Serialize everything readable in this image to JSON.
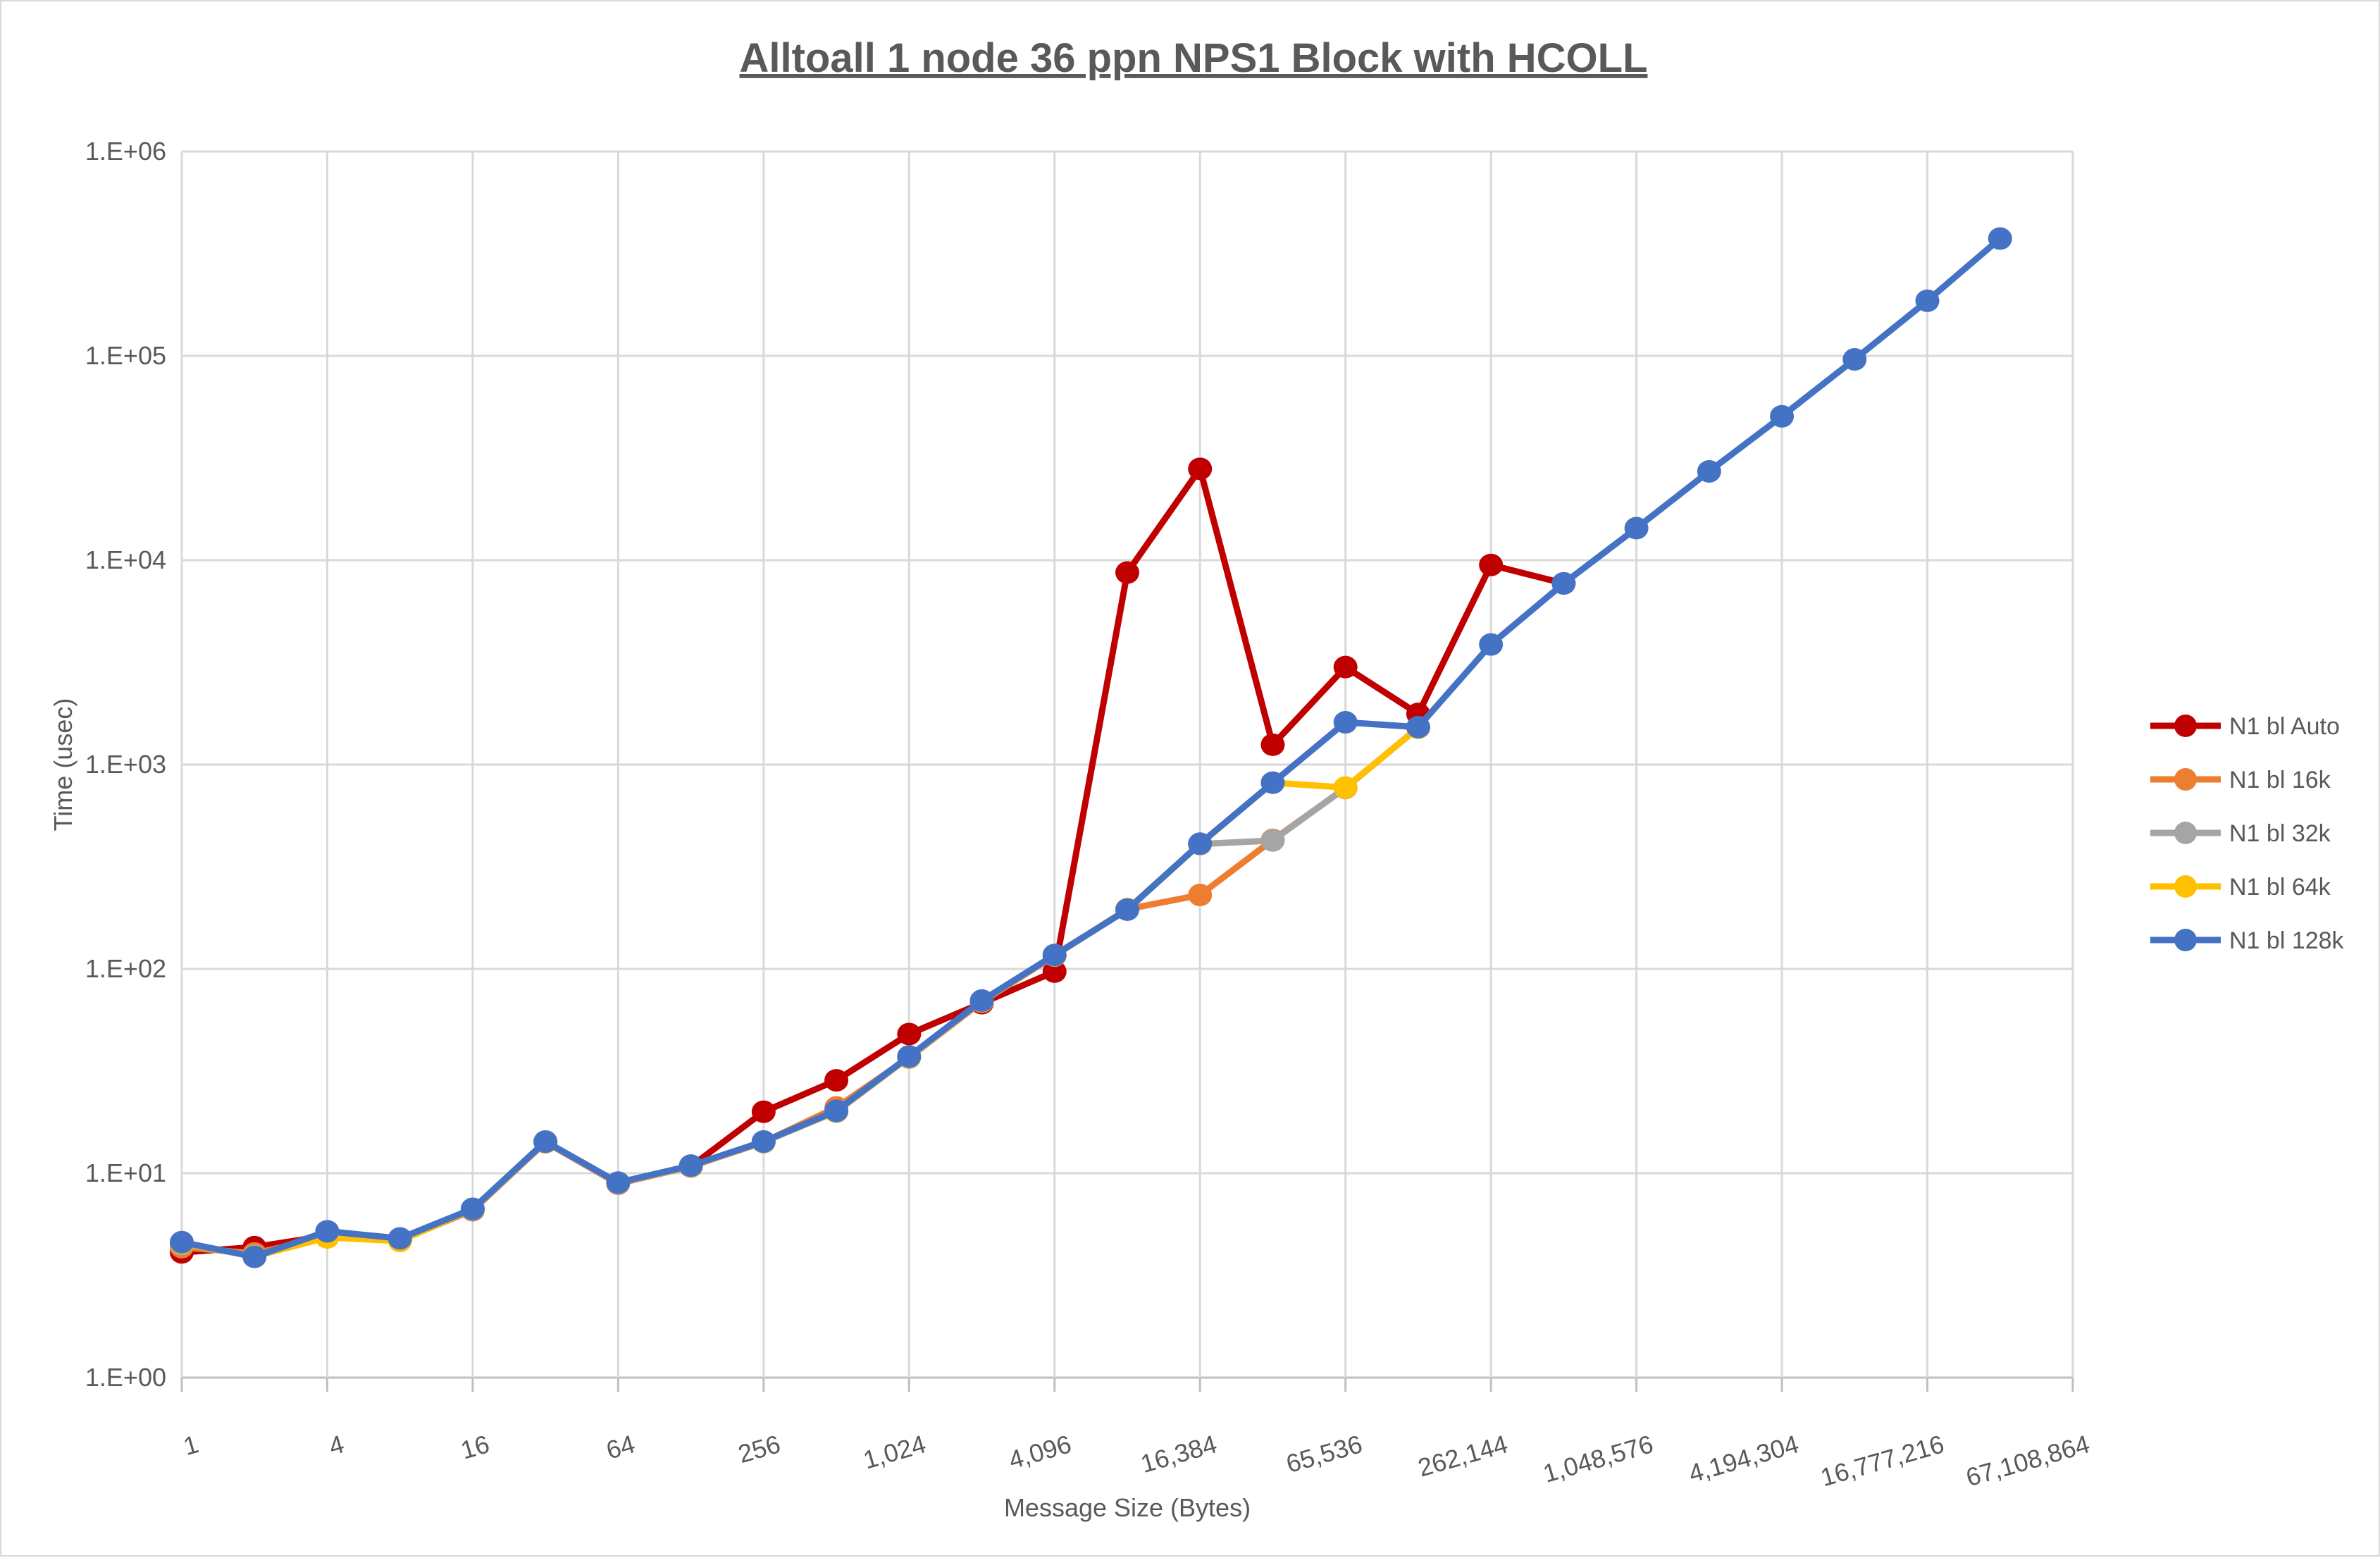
{
  "title": "Alltoall 1 node 36 ppn NPS1 Block with HCOLL",
  "colors": {
    "title_text": "#595959",
    "axis_text": "#595959",
    "gridline": "#d9d9d9",
    "axis_line": "#bfbfbf",
    "background": "#ffffff"
  },
  "chart_data": {
    "type": "line",
    "title": "Alltoall 1 node 36 ppn NPS1 Block with HCOLL",
    "xlabel": "Message Size (Bytes)",
    "ylabel": "Time (usec)",
    "x_scale": "log2-categories",
    "y_scale": "log10",
    "ylim": [
      1,
      1000000
    ],
    "x_categories_pow2_range": [
      1,
      67108864
    ],
    "x_tick_labels": [
      "1",
      "4",
      "16",
      "64",
      "256",
      "1,024",
      "4,096",
      "16,384",
      "65,536",
      "262,144",
      "1,048,576",
      "4,194,304",
      "16,777,216",
      "67,108,864"
    ],
    "y_tick_labels": [
      "1.E+00",
      "1.E+01",
      "1.E+02",
      "1.E+03",
      "1.E+04",
      "1.E+05",
      "1.E+06"
    ],
    "grid": true,
    "legend_position": "right",
    "series": [
      {
        "name": "N1 bl Auto",
        "color": "#C00000",
        "points": [
          [
            1,
            4.1
          ],
          [
            2,
            4.35
          ],
          [
            4,
            4.95
          ],
          [
            8,
            4.7
          ],
          [
            16,
            6.6
          ],
          [
            32,
            14.2
          ],
          [
            64,
            8.9
          ],
          [
            128,
            10.8
          ],
          [
            256,
            20
          ],
          [
            512,
            28.5
          ],
          [
            1024,
            48
          ],
          [
            2048,
            68
          ],
          [
            4096,
            97
          ],
          [
            8192,
            8700
          ],
          [
            16384,
            28000
          ],
          [
            32768,
            1250
          ],
          [
            65536,
            3000
          ],
          [
            131072,
            1770
          ],
          [
            262144,
            9480
          ],
          [
            524288,
            7700
          ]
        ]
      },
      {
        "name": "N1 bl 16k",
        "color": "#ED7D31",
        "points": [
          [
            1,
            4.35
          ],
          [
            2,
            4.05
          ],
          [
            4,
            4.9
          ],
          [
            8,
            4.68
          ],
          [
            16,
            6.62
          ],
          [
            32,
            14.2
          ],
          [
            64,
            8.92
          ],
          [
            128,
            10.8
          ],
          [
            256,
            14.2
          ],
          [
            512,
            21
          ],
          [
            1024,
            36.8
          ],
          [
            2048,
            69
          ],
          [
            4096,
            116
          ],
          [
            8192,
            196
          ],
          [
            16384,
            230
          ],
          [
            32768,
            428
          ],
          [
            65536,
            768
          ],
          [
            131072,
            1515
          ]
        ]
      },
      {
        "name": "N1 bl 32k",
        "color": "#A5A5A5",
        "points": [
          [
            1,
            4.5
          ],
          [
            2,
            3.95
          ],
          [
            4,
            4.88
          ],
          [
            8,
            4.72
          ],
          [
            16,
            6.65
          ],
          [
            32,
            14.25
          ],
          [
            64,
            8.95
          ],
          [
            128,
            10.85
          ],
          [
            256,
            14.25
          ],
          [
            512,
            20
          ],
          [
            1024,
            37
          ],
          [
            2048,
            69.5
          ],
          [
            4096,
            116.5
          ],
          [
            8192,
            195
          ],
          [
            16384,
            408
          ],
          [
            32768,
            425
          ],
          [
            65536,
            770
          ],
          [
            131072,
            1518
          ]
        ]
      },
      {
        "name": "N1 bl 64k",
        "color": "#FFC000",
        "points": [
          [
            1,
            4.55
          ],
          [
            2,
            3.92
          ],
          [
            4,
            4.85
          ],
          [
            8,
            4.66
          ],
          [
            16,
            6.68
          ],
          [
            32,
            14.28
          ],
          [
            64,
            8.97
          ],
          [
            128,
            10.87
          ],
          [
            256,
            14.28
          ],
          [
            512,
            20.1
          ],
          [
            1024,
            37.1
          ],
          [
            2048,
            69.8
          ],
          [
            4096,
            116.8
          ],
          [
            8192,
            195.5
          ],
          [
            16384,
            409
          ],
          [
            32768,
            815
          ],
          [
            65536,
            772
          ],
          [
            131072,
            1512
          ]
        ]
      },
      {
        "name": "N1 bl 128k",
        "color": "#4472C4",
        "points": [
          [
            1,
            4.6
          ],
          [
            2,
            3.9
          ],
          [
            4,
            5.2
          ],
          [
            8,
            4.8
          ],
          [
            16,
            6.7
          ],
          [
            32,
            14.3
          ],
          [
            64,
            9
          ],
          [
            128,
            10.9
          ],
          [
            256,
            14.3
          ],
          [
            512,
            20.2
          ],
          [
            1024,
            37.3
          ],
          [
            2048,
            70
          ],
          [
            4096,
            117
          ],
          [
            8192,
            195
          ],
          [
            16384,
            410
          ],
          [
            32768,
            815
          ],
          [
            65536,
            1610
          ],
          [
            131072,
            1525
          ],
          [
            262144,
            3870
          ],
          [
            524288,
            7700
          ],
          [
            1048576,
            14350
          ],
          [
            2097152,
            27200
          ],
          [
            4194304,
            50600
          ],
          [
            8388608,
            96100
          ],
          [
            16777216,
            186000
          ],
          [
            33554432,
            375000
          ]
        ]
      }
    ]
  }
}
